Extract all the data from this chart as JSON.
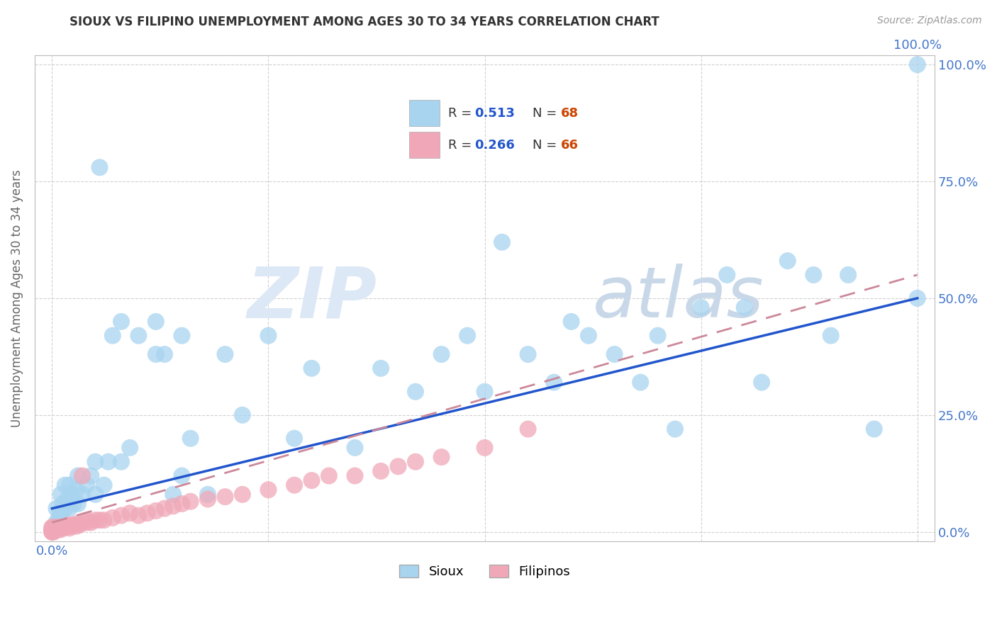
{
  "title": "SIOUX VS FILIPINO UNEMPLOYMENT AMONG AGES 30 TO 34 YEARS CORRELATION CHART",
  "source_text": "Source: ZipAtlas.com",
  "ylabel": "Unemployment Among Ages 30 to 34 years",
  "sioux_R": 0.513,
  "sioux_N": 68,
  "filipino_R": 0.266,
  "filipino_N": 66,
  "sioux_color": "#a8d4f0",
  "sioux_edge": "#7ab8e0",
  "filipino_color": "#f0a8b8",
  "filipino_edge": "#e07898",
  "trend_sioux_color": "#2255cc",
  "trend_filipino_color": "#cc8899",
  "background_color": "#ffffff",
  "grid_color": "#cccccc",
  "title_color": "#333333",
  "axis_label_color": "#4477cc",
  "legend_R_color": "#2255cc",
  "legend_N_color": "#cc4400",
  "watermark_zip_color": "#d8e8f0",
  "watermark_atlas_color": "#d0d8e8",
  "sioux_x": [
    0.005,
    0.005,
    0.008,
    0.01,
    0.01,
    0.012,
    0.015,
    0.015,
    0.018,
    0.02,
    0.02,
    0.022,
    0.025,
    0.028,
    0.03,
    0.03,
    0.035,
    0.04,
    0.045,
    0.05,
    0.05,
    0.055,
    0.06,
    0.065,
    0.07,
    0.08,
    0.08,
    0.09,
    0.1,
    0.12,
    0.12,
    0.13,
    0.14,
    0.15,
    0.15,
    0.16,
    0.18,
    0.2,
    0.22,
    0.25,
    0.28,
    0.3,
    0.35,
    0.38,
    0.42,
    0.45,
    0.48,
    0.5,
    0.52,
    0.55,
    0.58,
    0.6,
    0.62,
    0.65,
    0.68,
    0.7,
    0.72,
    0.75,
    0.78,
    0.8,
    0.82,
    0.85,
    0.88,
    0.9,
    0.92,
    0.95,
    1.0,
    1.0
  ],
  "sioux_y": [
    0.02,
    0.05,
    0.03,
    0.04,
    0.08,
    0.06,
    0.05,
    0.1,
    0.07,
    0.05,
    0.1,
    0.08,
    0.06,
    0.09,
    0.06,
    0.12,
    0.08,
    0.1,
    0.12,
    0.08,
    0.15,
    0.78,
    0.1,
    0.15,
    0.42,
    0.15,
    0.45,
    0.18,
    0.42,
    0.38,
    0.45,
    0.38,
    0.08,
    0.42,
    0.12,
    0.2,
    0.08,
    0.38,
    0.25,
    0.42,
    0.2,
    0.35,
    0.18,
    0.35,
    0.3,
    0.38,
    0.42,
    0.3,
    0.62,
    0.38,
    0.32,
    0.45,
    0.42,
    0.38,
    0.32,
    0.42,
    0.22,
    0.48,
    0.55,
    0.48,
    0.32,
    0.58,
    0.55,
    0.42,
    0.55,
    0.22,
    0.5,
    1.0
  ],
  "filipino_x": [
    0.0,
    0.0,
    0.0,
    0.0,
    0.0,
    0.0,
    0.0,
    0.0,
    0.0,
    0.0,
    0.002,
    0.002,
    0.003,
    0.004,
    0.004,
    0.005,
    0.005,
    0.006,
    0.007,
    0.008,
    0.009,
    0.01,
    0.01,
    0.012,
    0.013,
    0.015,
    0.015,
    0.018,
    0.02,
    0.02,
    0.022,
    0.025,
    0.028,
    0.03,
    0.032,
    0.035,
    0.04,
    0.04,
    0.045,
    0.05,
    0.055,
    0.06,
    0.07,
    0.08,
    0.09,
    0.1,
    0.11,
    0.12,
    0.13,
    0.14,
    0.15,
    0.16,
    0.18,
    0.2,
    0.22,
    0.25,
    0.28,
    0.3,
    0.32,
    0.35,
    0.38,
    0.4,
    0.42,
    0.45,
    0.5,
    0.55
  ],
  "filipino_y": [
    0.0,
    0.0,
    0.0,
    0.002,
    0.003,
    0.004,
    0.005,
    0.006,
    0.008,
    0.01,
    0.0,
    0.005,
    0.003,
    0.004,
    0.007,
    0.005,
    0.01,
    0.006,
    0.008,
    0.006,
    0.009,
    0.005,
    0.01,
    0.008,
    0.01,
    0.01,
    0.012,
    0.012,
    0.008,
    0.015,
    0.012,
    0.015,
    0.012,
    0.018,
    0.015,
    0.12,
    0.02,
    0.025,
    0.02,
    0.025,
    0.025,
    0.025,
    0.03,
    0.035,
    0.04,
    0.035,
    0.04,
    0.045,
    0.05,
    0.055,
    0.06,
    0.065,
    0.07,
    0.075,
    0.08,
    0.09,
    0.1,
    0.11,
    0.12,
    0.12,
    0.13,
    0.14,
    0.15,
    0.16,
    0.18,
    0.22
  ],
  "sioux_trend_x": [
    0.0,
    1.0
  ],
  "sioux_trend_y": [
    0.05,
    0.5
  ],
  "filipino_trend_x": [
    0.0,
    1.0
  ],
  "filipino_trend_y": [
    0.02,
    0.55
  ],
  "xlim": [
    -0.02,
    1.02
  ],
  "ylim": [
    -0.02,
    1.02
  ],
  "xticks": [
    0.0,
    0.25,
    0.5,
    0.75,
    1.0
  ],
  "yticks": [
    0.0,
    0.25,
    0.5,
    0.75,
    1.0
  ],
  "xticklabels_left": [
    "0.0%",
    "",
    "",
    "",
    ""
  ],
  "xticklabels_right": [
    "",
    "",
    "",
    "",
    "100.0%"
  ],
  "yticklabels_left": [
    "",
    "",
    "",
    "",
    ""
  ],
  "yticklabels_right": [
    "0.0%",
    "25.0%",
    "50.0%",
    "75.0%",
    "100.0%"
  ]
}
